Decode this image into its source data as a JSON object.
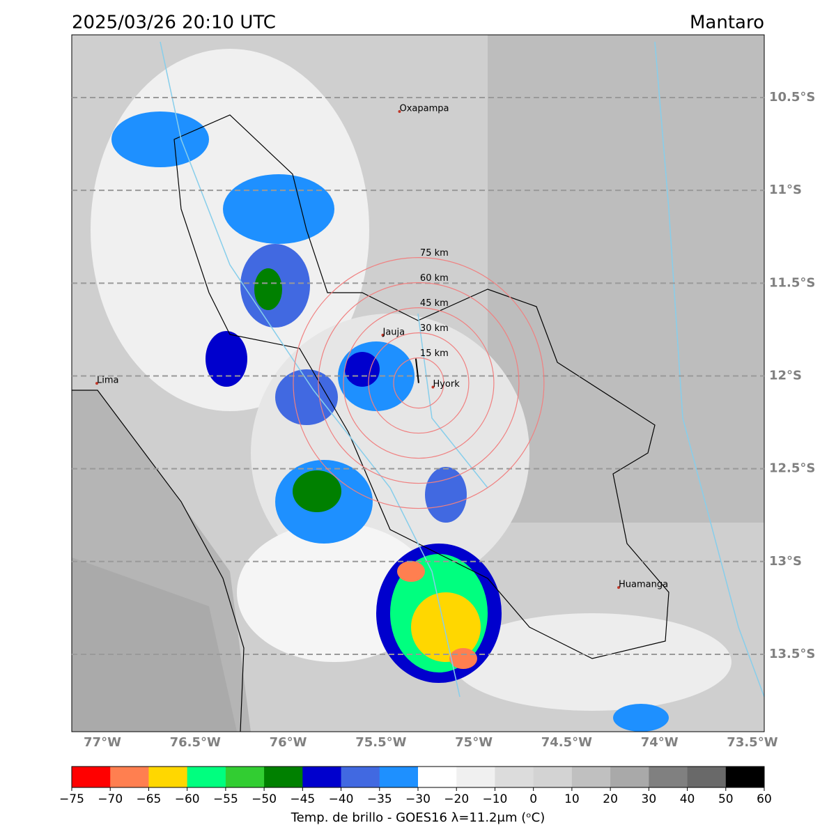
{
  "header": {
    "title": "2025/03/26 20:10 UTC",
    "region": "Mantaro"
  },
  "map": {
    "lon_extent": [
      -77.165,
      -73.436
    ],
    "lat_extent": [
      -10.162,
      -13.917
    ],
    "lon_ticks": [
      {
        "value": -77,
        "label": "77°W"
      },
      {
        "value": -76.5,
        "label": "76.5°W"
      },
      {
        "value": -76,
        "label": "76°W"
      },
      {
        "value": -75.5,
        "label": "75.5°W"
      },
      {
        "value": -75,
        "label": "75°W"
      },
      {
        "value": -74.5,
        "label": "74.5°W"
      },
      {
        "value": -74,
        "label": "74°W"
      },
      {
        "value": -73.5,
        "label": "73.5°W"
      }
    ],
    "lat_ticks": [
      {
        "value": -10.5,
        "label": "10.5°S"
      },
      {
        "value": -11,
        "label": "11°S"
      },
      {
        "value": -11.5,
        "label": "11.5°S"
      },
      {
        "value": -12,
        "label": "12°S"
      },
      {
        "value": -12.5,
        "label": "12.5°S"
      },
      {
        "value": -13,
        "label": "13°S"
      },
      {
        "value": -13.5,
        "label": "13.5°S"
      }
    ],
    "places": [
      {
        "name": "Oxapampa",
        "lon": -75.4,
        "lat": -10.575
      },
      {
        "name": "Lima",
        "lon": -77.03,
        "lat": -12.04
      },
      {
        "name": "Jauja",
        "lon": -75.49,
        "lat": -11.78
      },
      {
        "name": "Hyork",
        "lon": -75.22,
        "lat": -12.06
      },
      {
        "name": "Huamanga",
        "lon": -74.22,
        "lat": -13.14
      }
    ],
    "ring_center": {
      "lon": -75.297,
      "lat": -12.038
    },
    "rings": [
      {
        "value": 15,
        "label": "15 km"
      },
      {
        "value": 30,
        "label": "30 km"
      },
      {
        "value": 45,
        "label": "45 km"
      },
      {
        "value": 60,
        "label": "60 km"
      },
      {
        "value": 75,
        "label": "75 km"
      }
    ]
  },
  "colorbar": {
    "label": "Temp. de brillo - GOES16 λ=11.2μm (ᵒC)",
    "ticks": [
      {
        "value": -75,
        "label": "−75"
      },
      {
        "value": -70,
        "label": "−70"
      },
      {
        "value": -65,
        "label": "−65"
      },
      {
        "value": -60,
        "label": "−60"
      },
      {
        "value": -55,
        "label": "−55"
      },
      {
        "value": -50,
        "label": "−50"
      },
      {
        "value": -45,
        "label": "−45"
      },
      {
        "value": -40,
        "label": "−40"
      },
      {
        "value": -35,
        "label": "−35"
      },
      {
        "value": -30,
        "label": "−30"
      },
      {
        "value": -20,
        "label": "−20"
      },
      {
        "value": -10,
        "label": "−10"
      },
      0,
      10,
      20,
      30,
      40,
      50,
      60
    ],
    "colors": [
      "#ff0000",
      "#ff7f50",
      "#ffd700",
      "#00ff7f",
      "#32cd32",
      "#008000",
      "#0000cd",
      "#4169e1",
      "#1e90ff",
      "#ffffff",
      "#f0f0f0",
      "#dcdcdc",
      "#d3d3d3",
      "#c0c0c0",
      "#a9a9a9",
      "#808080",
      "#696969",
      "#000000"
    ]
  }
}
